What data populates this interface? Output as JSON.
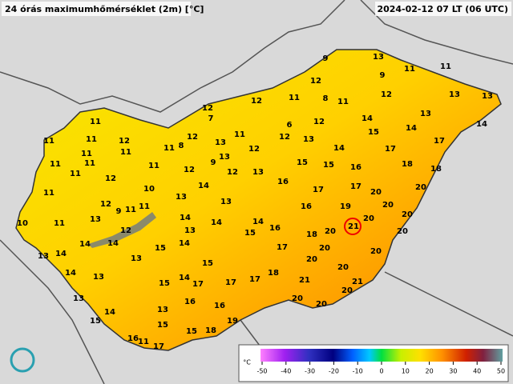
{
  "header": {
    "title": "24 órás maximumhőmérséklet (2m) [°C]",
    "timestamp": "2024-02-12 07 LT (06 UTC)"
  },
  "stations": [
    9,
    13,
    9,
    11,
    11,
    12,
    12,
    11,
    8,
    11,
    12,
    13,
    13,
    12,
    7,
    13,
    11,
    6,
    12,
    14,
    14,
    14,
    11,
    11,
    12,
    12,
    11,
    12,
    13,
    15,
    17,
    11,
    11,
    11,
    8,
    13,
    12,
    14,
    17,
    11,
    11,
    11,
    9,
    13,
    15,
    15,
    16,
    18,
    18,
    11,
    12,
    12,
    13,
    12,
    16,
    11,
    10,
    14,
    17,
    17,
    20,
    20,
    12,
    9,
    11,
    11,
    13,
    13,
    16,
    19,
    20,
    10,
    11,
    13,
    14,
    14,
    14,
    21,
    20,
    20,
    12,
    14,
    14,
    13,
    15,
    16,
    18,
    20,
    20,
    13,
    14,
    15,
    14,
    17,
    20,
    20,
    13,
    15,
    20,
    20,
    14,
    13,
    14,
    18,
    15,
    17,
    17,
    17,
    21,
    21,
    20,
    13,
    16,
    16,
    20,
    20,
    14,
    13,
    15,
    15,
    19,
    16,
    11,
    15,
    18,
    17
  ],
  "colorbar": {
    "unit": "°C",
    "ticks": [
      -50,
      -40,
      -30,
      -20,
      -10,
      0,
      10,
      20,
      30,
      40,
      50
    ]
  }
}
